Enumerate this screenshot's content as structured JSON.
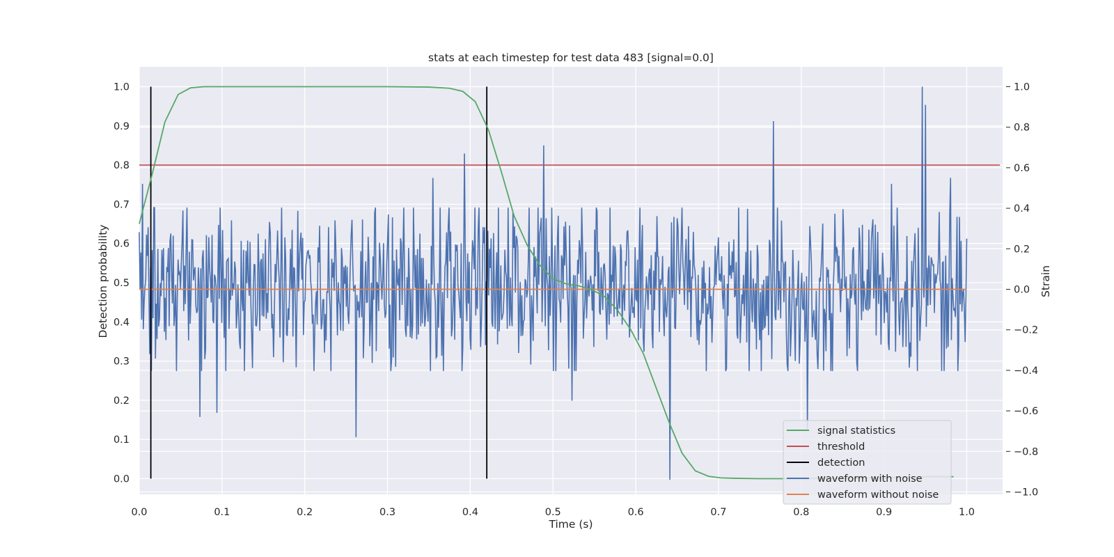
{
  "chart_data": {
    "type": "line",
    "title": "stats at each timestep for test data 483 [signal=0.0]",
    "xlabel": "Time (s)",
    "ylabel_left": "Detection probability",
    "ylabel_right": "Strain",
    "xlim": [
      0.0,
      1.05
    ],
    "ylim_left": [
      -0.05,
      1.05
    ],
    "ylim_right": [
      -1.0,
      1.0
    ],
    "x_ticks": [
      "0.0",
      "0.1",
      "0.2",
      "0.3",
      "0.4",
      "0.5",
      "0.6",
      "0.7",
      "0.8",
      "0.9",
      "1.0"
    ],
    "y_left_ticks": [
      "0.0",
      "0.1",
      "0.2",
      "0.3",
      "0.4",
      "0.5",
      "0.6",
      "0.7",
      "0.8",
      "0.9",
      "1.0"
    ],
    "y_right_ticks": [
      "−1.0",
      "−0.8",
      "−0.6",
      "−0.4",
      "−0.2",
      "0.0",
      "0.2",
      "0.4",
      "0.6",
      "0.8",
      "1.0"
    ],
    "grid": true,
    "legend_position": "bottom-right",
    "series": [
      {
        "name": "signal statistics",
        "axis": "left",
        "color": "#55a868",
        "x": [
          0.0,
          0.016,
          0.031,
          0.047,
          0.062,
          0.078,
          0.1,
          0.2,
          0.3,
          0.35,
          0.375,
          0.391,
          0.406,
          0.422,
          0.438,
          0.453,
          0.469,
          0.484,
          0.5,
          0.516,
          0.531,
          0.547,
          0.562,
          0.578,
          0.594,
          0.609,
          0.625,
          0.641,
          0.656,
          0.672,
          0.688,
          0.703,
          0.719,
          0.75,
          0.8,
          0.9,
          0.95,
          0.984
        ],
        "y": [
          0.65,
          0.78,
          0.91,
          0.98,
          0.997,
          1.0,
          1.0,
          1.0,
          1.0,
          0.999,
          0.996,
          0.988,
          0.962,
          0.89,
          0.78,
          0.67,
          0.595,
          0.545,
          0.51,
          0.497,
          0.492,
          0.482,
          0.465,
          0.43,
          0.38,
          0.32,
          0.23,
          0.14,
          0.065,
          0.02,
          0.006,
          0.002,
          0.001,
          0.0,
          0.0,
          0.002,
          0.005,
          0.005
        ]
      },
      {
        "name": "threshold",
        "axis": "left",
        "color": "#c44e52",
        "x": [
          0.0,
          1.04
        ],
        "y": [
          0.8,
          0.8
        ]
      },
      {
        "name": "detection",
        "axis": "left",
        "color": "#000000",
        "x": [
          0.014,
          0.014,
          0.42,
          0.42
        ],
        "y": [
          0.0,
          1.0,
          0.0,
          1.0
        ],
        "segments": [
          {
            "x": 0.014,
            "y0": 0.0,
            "y1": 1.0
          },
          {
            "x": 0.42,
            "y0": 0.0,
            "y1": 1.0
          }
        ]
      },
      {
        "name": "waveform with noise",
        "axis": "right",
        "color": "#4c72b0",
        "n_points": 1024,
        "x_start": 0.0,
        "x_end": 1.0,
        "y_spread": 0.32,
        "peaks": [
          {
            "x": 0.0035,
            "y": 0.52
          },
          {
            "x": 0.013,
            "y": -0.32
          },
          {
            "x": 0.073,
            "y": -0.63
          },
          {
            "x": 0.094,
            "y": -0.61
          },
          {
            "x": 0.262,
            "y": -0.73
          },
          {
            "x": 0.355,
            "y": 0.55
          },
          {
            "x": 0.393,
            "y": 0.67
          },
          {
            "x": 0.489,
            "y": 0.71
          },
          {
            "x": 0.523,
            "y": -0.55
          },
          {
            "x": 0.641,
            "y": -0.94
          },
          {
            "x": 0.766,
            "y": 0.83
          },
          {
            "x": 0.807,
            "y": -0.69
          },
          {
            "x": 0.909,
            "y": 0.52
          },
          {
            "x": 0.946,
            "y": 1.0
          },
          {
            "x": 0.95,
            "y": 0.91
          },
          {
            "x": 0.98,
            "y": 0.55
          }
        ]
      },
      {
        "name": "waveform without noise",
        "axis": "right",
        "color": "#dd8452",
        "x": [
          0.0,
          1.0
        ],
        "y": [
          0.0,
          0.0
        ]
      }
    ]
  }
}
